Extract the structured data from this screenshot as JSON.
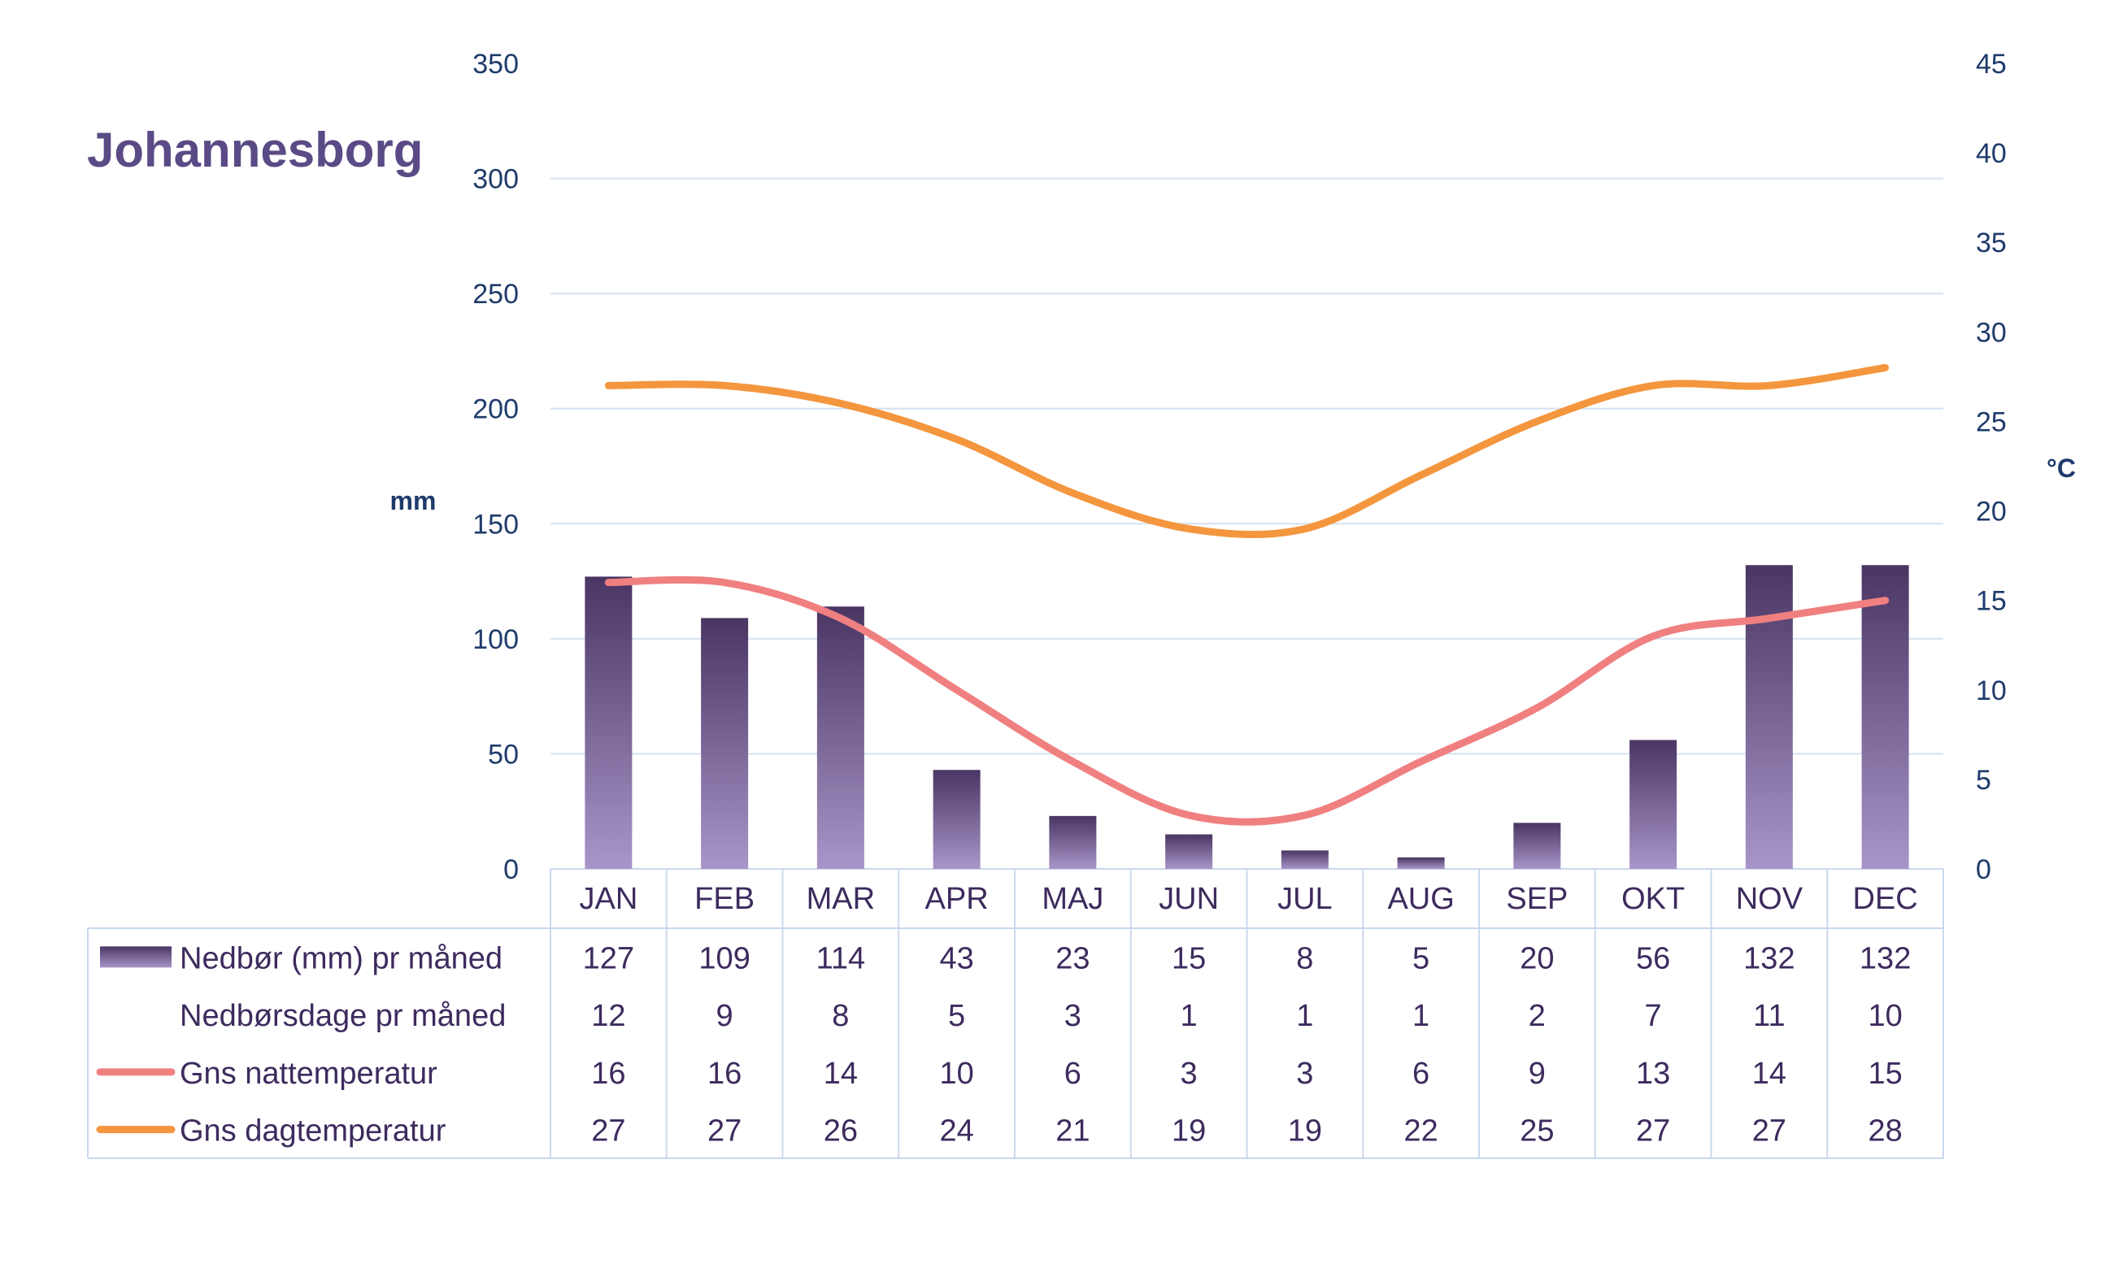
{
  "title": "Johannesborg",
  "colors": {
    "title": "#5a4a85",
    "axis_text": "#1f3b6b",
    "grid": "#d6e2f0",
    "bar_top": "#4a3563",
    "bar_bottom": "#a896c9",
    "night_line": "#f08080",
    "day_line": "#f4963e",
    "table_text": "#3d2b5e",
    "table_border": "#c9d8ee"
  },
  "chart_data": {
    "type": "bar",
    "title": "Johannesborg",
    "categories": [
      "JAN",
      "FEB",
      "MAR",
      "APR",
      "MAJ",
      "JUN",
      "JUL",
      "AUG",
      "SEP",
      "OKT",
      "NOV",
      "DEC"
    ],
    "y_left": {
      "label": "mm",
      "range": [
        0,
        350
      ],
      "ticks": [
        "0",
        "50",
        "100",
        "150",
        "200",
        "250",
        "300",
        "350"
      ]
    },
    "y_right": {
      "label": "°C",
      "range": [
        0,
        45
      ],
      "ticks": [
        "0",
        "5",
        "10",
        "15",
        "20",
        "25",
        "30",
        "35",
        "40",
        "45"
      ]
    },
    "grid": true,
    "legend": "table-below",
    "series": [
      {
        "name": "Nedbør (mm) pr måned",
        "kind": "bar",
        "axis": "left",
        "values": [
          127,
          109,
          114,
          43,
          23,
          15,
          8,
          5,
          20,
          56,
          132,
          132
        ]
      },
      {
        "name": "Nedbørsdage pr måned",
        "kind": "table-only",
        "values": [
          12,
          9,
          8,
          5,
          3,
          1,
          1,
          1,
          2,
          7,
          11,
          10
        ]
      },
      {
        "name": "Gns nattemperatur",
        "kind": "line",
        "axis": "right",
        "values": [
          16,
          16,
          14,
          10,
          6,
          3,
          3,
          6,
          9,
          13,
          14,
          15
        ]
      },
      {
        "name": "Gns dagtemperatur",
        "kind": "line",
        "axis": "right",
        "values": [
          27,
          27,
          26,
          24,
          21,
          19,
          19,
          22,
          25,
          27,
          27,
          28
        ]
      }
    ]
  }
}
